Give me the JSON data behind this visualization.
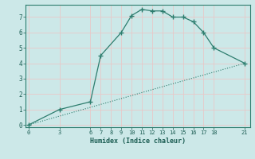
{
  "xlabel": "Humidex (Indice chaleur)",
  "bg_color": "#cce8e8",
  "grid_color": "#e8c8c8",
  "line_color": "#2d7d6e",
  "xticks": [
    0,
    3,
    6,
    7,
    8,
    9,
    10,
    11,
    12,
    13,
    14,
    15,
    16,
    17,
    18,
    21
  ],
  "yticks": [
    0,
    1,
    2,
    3,
    4,
    5,
    6,
    7
  ],
  "ylim": [
    -0.15,
    7.8
  ],
  "xlim": [
    -0.3,
    21.5
  ],
  "curve_x": [
    0,
    3,
    6,
    7,
    9,
    10,
    11,
    12,
    13,
    14,
    15,
    16,
    17,
    18,
    21
  ],
  "curve_y": [
    0.0,
    1.0,
    1.5,
    4.5,
    6.0,
    7.1,
    7.5,
    7.4,
    7.4,
    7.0,
    7.0,
    6.7,
    6.0,
    5.0,
    4.0
  ],
  "diag_x": [
    0,
    3,
    6,
    7,
    8,
    9,
    10,
    11,
    12,
    13,
    14,
    15,
    16,
    17,
    18,
    21
  ],
  "diag_y": [
    0.0,
    0.57,
    1.14,
    1.33,
    1.52,
    1.71,
    1.9,
    2.1,
    2.29,
    2.48,
    2.67,
    2.86,
    3.05,
    3.24,
    3.43,
    4.0
  ]
}
